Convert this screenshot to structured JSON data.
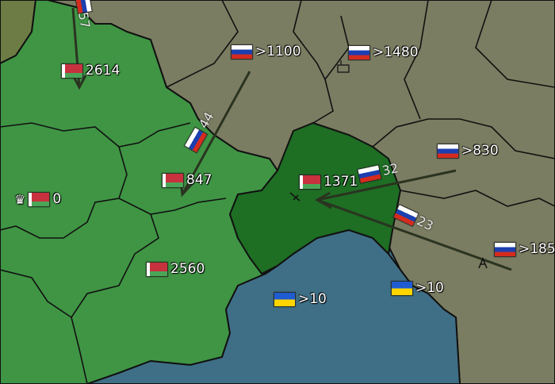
{
  "colors": {
    "sea": "#3f6f86",
    "belarus_land": "#3f9544",
    "belarus_capital_region": "#1e6e24",
    "russia_land": "#7b7d62",
    "northwest_land": "#6c7c44",
    "border": "#111111"
  },
  "regions": [
    {
      "id": "r1",
      "flag": "ru",
      "value": ">1100",
      "icon": "russia-flag-icon"
    },
    {
      "id": "r2",
      "flag": "ru",
      "value": ">1480",
      "icon": "russia-flag-icon"
    },
    {
      "id": "r3",
      "flag": "by",
      "value": "2614",
      "icon": "belarus-flag-icon"
    },
    {
      "id": "r4",
      "flag": "by",
      "value": "0",
      "icon": "belarus-flag-icon",
      "crown": true
    },
    {
      "id": "r5",
      "flag": "by",
      "value": "847",
      "icon": "belarus-flag-icon"
    },
    {
      "id": "r6",
      "flag": "by",
      "value": "1371",
      "icon": "belarus-flag-icon"
    },
    {
      "id": "r7",
      "flag": "ru",
      "value": ">830",
      "icon": "russia-flag-icon"
    },
    {
      "id": "r8",
      "flag": "by",
      "value": "2560",
      "icon": "belarus-flag-icon"
    },
    {
      "id": "r9",
      "flag": "ua",
      "value": ">10",
      "icon": "ukraine-flag-icon"
    },
    {
      "id": "r10",
      "flag": "ua",
      "value": ">10",
      "icon": "ukraine-flag-icon"
    },
    {
      "id": "r11",
      "flag": "ru",
      "value": ">185",
      "icon": "russia-flag-icon"
    }
  ],
  "attacks": [
    {
      "id": "a1",
      "value": "57",
      "icon": "russia-flag-icon"
    },
    {
      "id": "a2",
      "value": "44",
      "icon": "russia-flag-icon"
    },
    {
      "id": "a3",
      "value": "32",
      "icon": "russia-flag-icon"
    },
    {
      "id": "a4",
      "value": "23",
      "icon": "russia-flag-icon"
    }
  ],
  "icons": {
    "capital": "crown-icon",
    "factory": "factory-icon",
    "rail": "railway-icon",
    "tower": "tower-icon"
  }
}
